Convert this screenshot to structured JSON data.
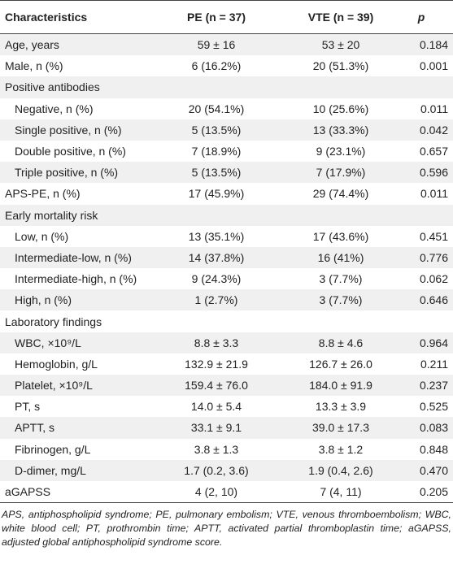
{
  "table": {
    "header": [
      "Characteristics",
      "PE (n = 37)",
      "VTE (n = 39)",
      "p"
    ],
    "sections": [
      {
        "cells": [
          "Age, years",
          "59 ± 16",
          "53 ± 20",
          "0.184"
        ]
      },
      {
        "cells": [
          "Male, n (%)",
          "6 (16.2%)",
          "20 (51.3%)",
          "0.001"
        ]
      },
      {
        "group": "Positive antibodies",
        "rows": [
          [
            "Negative, n (%)",
            "20 (54.1%)",
            "10 (25.6%)",
            "0.011"
          ],
          [
            "Single positive, n (%)",
            "5 (13.5%)",
            "13 (33.3%)",
            "0.042"
          ],
          [
            "Double positive, n (%)",
            "7 (18.9%)",
            "9 (23.1%)",
            "0.657"
          ],
          [
            "Triple positive, n (%)",
            "5 (13.5%)",
            "7 (17.9%)",
            "0.596"
          ]
        ]
      },
      {
        "cells": [
          "APS-PE, n (%)",
          "17 (45.9%)",
          "29 (74.4%)",
          "0.011"
        ]
      },
      {
        "group": "Early mortality risk",
        "rows": [
          [
            "Low, n (%)",
            "13 (35.1%)",
            "17 (43.6%)",
            "0.451"
          ],
          [
            "Intermediate-low, n (%)",
            "14 (37.8%)",
            "16 (41%)",
            "0.776"
          ],
          [
            "Intermediate-high, n (%)",
            "9 (24.3%)",
            "3 (7.7%)",
            "0.062"
          ],
          [
            "High, n (%)",
            "1 (2.7%)",
            "3 (7.7%)",
            "0.646"
          ]
        ]
      },
      {
        "group": "Laboratory findings",
        "rows": [
          [
            "WBC, ×10⁹/L",
            "8.8 ± 3.3",
            "8.8 ± 4.6",
            "0.964"
          ],
          [
            "Hemoglobin, g/L",
            "132.9 ± 21.9",
            "126.7 ± 26.0",
            "0.211"
          ],
          [
            "Platelet, ×10⁹/L",
            "159.4 ± 76.0",
            "184.0 ± 91.9",
            "0.237"
          ],
          [
            "PT, s",
            "14.0 ± 5.4",
            "13.3 ± 3.9",
            "0.525"
          ],
          [
            "APTT, s",
            "33.1 ± 9.1",
            "39.0 ± 17.3",
            "0.083"
          ],
          [
            "Fibrinogen, g/L",
            "3.8 ± 1.3",
            "3.8 ± 1.2",
            "0.848"
          ],
          [
            "D-dimer, mg/L",
            "1.7 (0.2, 3.6)",
            "1.9 (0.4, 2.6)",
            "0.470"
          ]
        ]
      },
      {
        "cells": [
          "aGAPSS",
          "4 (2, 10)",
          "7 (4, 11)",
          "0.205"
        ]
      }
    ],
    "footnote": "APS, antiphospholipid syndrome; PE, pulmonary embolism; VTE, venous thromboembolism; WBC, white blood cell; PT, prothrombin time; APTT, activated partial thromboplastin time; aGAPSS, adjusted global antiphospholipid syndrome score."
  }
}
